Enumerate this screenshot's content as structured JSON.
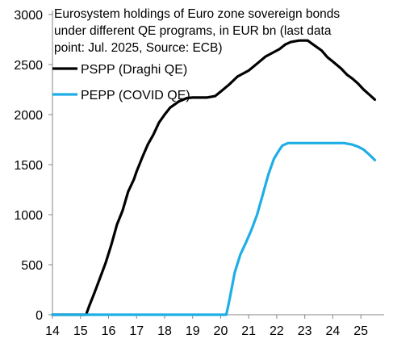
{
  "chart_data": {
    "type": "line",
    "title": "Eurosystem holdings of Euro zone sovereign bonds under different QE programs, in EUR bn (last data point: Jul. 2025, Source: ECB)",
    "title_lines": [
      "Eurosystem holdings of Euro zone sovereign bonds",
      "under different QE programs, in EUR bn (last data",
      "point: Jul. 2025, Source: ECB)"
    ],
    "xlabel": "",
    "ylabel": "",
    "xlim": [
      14,
      25.83
    ],
    "ylim": [
      0,
      3000
    ],
    "x_ticks": [
      14,
      15,
      16,
      17,
      18,
      19,
      20,
      21,
      22,
      23,
      24,
      25
    ],
    "x_tick_labels": [
      "14",
      "15",
      "16",
      "17",
      "18",
      "19",
      "20",
      "21",
      "22",
      "23",
      "24",
      "25"
    ],
    "y_ticks": [
      0,
      500,
      1000,
      1500,
      2000,
      2500,
      3000
    ],
    "y_tick_labels": [
      "0",
      "500",
      "1000",
      "1500",
      "2000",
      "2500",
      "3000"
    ],
    "grid": false,
    "legend_position": "top-left",
    "series": [
      {
        "name": "PSPP (Draghi QE)",
        "color": "#000000",
        "x": [
          14.0,
          15.2,
          15.3,
          15.5,
          15.7,
          15.9,
          16.1,
          16.3,
          16.5,
          16.7,
          16.9,
          17.0,
          17.2,
          17.4,
          17.6,
          17.8,
          18.0,
          18.2,
          18.5,
          18.8,
          19.0,
          19.5,
          19.8,
          20.0,
          20.3,
          20.6,
          21.0,
          21.3,
          21.6,
          21.9,
          22.1,
          22.3,
          22.5,
          22.8,
          23.1,
          23.3,
          23.6,
          23.8,
          24.0,
          24.3,
          24.5,
          24.7,
          24.9,
          25.1,
          25.3,
          25.5
        ],
        "y": [
          0,
          0,
          80,
          220,
          370,
          520,
          700,
          900,
          1040,
          1230,
          1350,
          1430,
          1570,
          1700,
          1800,
          1920,
          2000,
          2070,
          2130,
          2165,
          2170,
          2170,
          2185,
          2230,
          2300,
          2380,
          2440,
          2510,
          2580,
          2625,
          2655,
          2700,
          2725,
          2740,
          2740,
          2700,
          2640,
          2575,
          2530,
          2460,
          2400,
          2360,
          2310,
          2250,
          2200,
          2150
        ]
      },
      {
        "name": "PEPP (COVID QE)",
        "color": "#1eaee6",
        "x": [
          14.0,
          20.2,
          20.3,
          20.5,
          20.7,
          20.9,
          21.1,
          21.3,
          21.5,
          21.7,
          21.9,
          22.1,
          22.2,
          22.4,
          22.6,
          22.8,
          23.0,
          23.5,
          23.8,
          24.0,
          24.4,
          24.7,
          24.9,
          25.1,
          25.3,
          25.5
        ],
        "y": [
          0,
          0,
          130,
          420,
          600,
          720,
          850,
          1000,
          1200,
          1400,
          1560,
          1650,
          1690,
          1715,
          1715,
          1715,
          1715,
          1715,
          1715,
          1715,
          1715,
          1700,
          1680,
          1650,
          1600,
          1545
        ]
      }
    ]
  }
}
